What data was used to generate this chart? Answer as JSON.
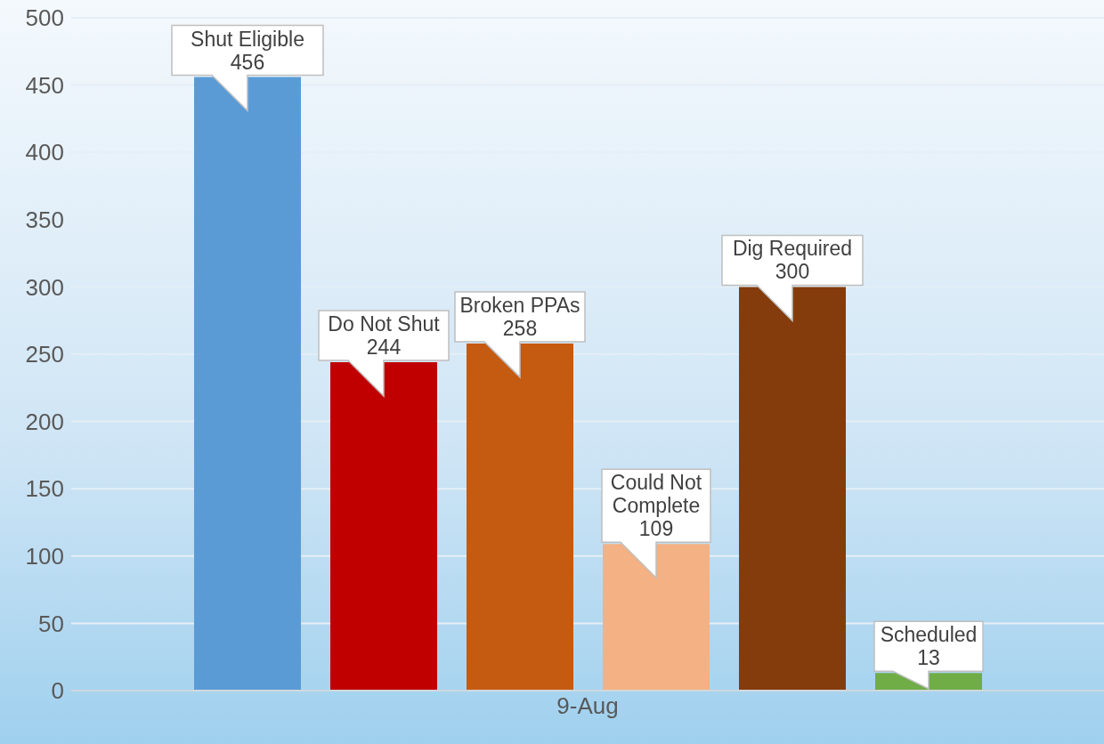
{
  "chart_data": {
    "type": "bar",
    "categories": [
      "9-Aug"
    ],
    "series": [
      {
        "name": "Shut Eligible",
        "color": "#5b9bd5",
        "values": [
          456
        ]
      },
      {
        "name": "Do Not Shut",
        "color": "#c00000",
        "values": [
          244
        ]
      },
      {
        "name": "Broken PPAs",
        "color": "#c55a11",
        "values": [
          258
        ]
      },
      {
        "name": "Could Not Complete",
        "color": "#f4b183",
        "values": [
          109
        ]
      },
      {
        "name": "Dig Required",
        "color": "#843c0c",
        "values": [
          300
        ]
      },
      {
        "name": "Scheduled",
        "color": "#70ad47",
        "values": [
          13
        ]
      }
    ],
    "ylim": [
      0,
      500
    ],
    "yticks": [
      0,
      50,
      100,
      150,
      200,
      250,
      300,
      350,
      400,
      450,
      500
    ],
    "grid": "y",
    "legend": false,
    "data_labels": true
  }
}
